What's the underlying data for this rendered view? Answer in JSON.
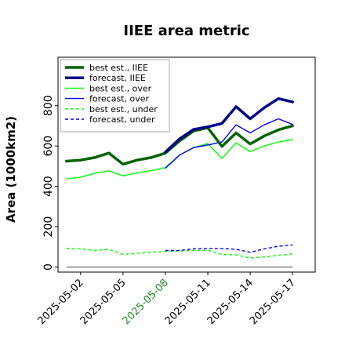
{
  "chart_data": {
    "type": "line",
    "title": "IIEE area metric",
    "xlabel": "",
    "ylabel": "Area (1000km2)",
    "x": [
      "2025-05-01",
      "2025-05-02",
      "2025-05-03",
      "2025-05-04",
      "2025-05-05",
      "2025-05-06",
      "2025-05-07",
      "2025-05-08",
      "2025-05-09",
      "2025-05-10",
      "2025-05-11",
      "2025-05-12",
      "2025-05-13",
      "2025-05-14",
      "2025-05-15",
      "2025-05-16",
      "2025-05-17",
      "2025-05-18"
    ],
    "x_tick_labels": [
      "2025-05-02",
      "2025-05-05",
      "2025-05-08",
      "2025-05-11",
      "2025-05-14",
      "2025-05-17"
    ],
    "highlighted_tick": "2025-05-08",
    "highlight_color": "#228b22",
    "xlim": [
      "2024-04-30",
      "2025-05-18"
    ],
    "ylim": [
      -25,
      1040
    ],
    "y_ticks": [
      0,
      200,
      400,
      600,
      800
    ],
    "grid": false,
    "legend_position": "top-left",
    "baseline": {
      "name": "",
      "value": 0,
      "color": "#808080"
    },
    "series": [
      {
        "name": "best est., IIEE",
        "color": "#006400",
        "style": "solid",
        "width": 3.5,
        "x": [
          "2025-05-01",
          "2025-05-02",
          "2025-05-03",
          "2025-05-04",
          "2025-05-05",
          "2025-05-06",
          "2025-05-07",
          "2025-05-08",
          "2025-05-09",
          "2025-05-10",
          "2025-05-11",
          "2025-05-12",
          "2025-05-13",
          "2025-05-14",
          "2025-05-15",
          "2025-05-16",
          "2025-05-17"
        ],
        "values": [
          525,
          530,
          543,
          565,
          510,
          530,
          543,
          565,
          625,
          675,
          690,
          598,
          665,
          610,
          650,
          680,
          700
        ]
      },
      {
        "name": "forecast, IIEE",
        "color": "#00008b",
        "style": "solid",
        "width": 3.5,
        "x": [
          "2025-05-08",
          "2025-05-09",
          "2025-05-10",
          "2025-05-11",
          "2025-05-12",
          "2025-05-13",
          "2025-05-14",
          "2025-05-15",
          "2025-05-16",
          "2025-05-17"
        ],
        "values": [
          570,
          635,
          682,
          695,
          712,
          795,
          735,
          790,
          835,
          818
        ]
      },
      {
        "name": "best est., over",
        "color": "#00ff00",
        "style": "solid",
        "width": 1.4,
        "x": [
          "2025-05-01",
          "2025-05-02",
          "2025-05-03",
          "2025-05-04",
          "2025-05-05",
          "2025-05-06",
          "2025-05-07",
          "2025-05-08",
          "2025-05-09",
          "2025-05-10",
          "2025-05-11",
          "2025-05-12",
          "2025-05-13",
          "2025-05-14",
          "2025-05-15",
          "2025-05-16",
          "2025-05-17"
        ],
        "values": [
          437,
          445,
          465,
          477,
          452,
          467,
          478,
          493,
          555,
          592,
          612,
          538,
          615,
          572,
          600,
          620,
          632
        ]
      },
      {
        "name": "forecast, over",
        "color": "#0000ff",
        "style": "solid",
        "width": 1.4,
        "x": [
          "2025-05-08",
          "2025-05-09",
          "2025-05-10",
          "2025-05-11",
          "2025-05-12",
          "2025-05-13",
          "2025-05-14",
          "2025-05-15",
          "2025-05-16",
          "2025-05-17"
        ],
        "values": [
          490,
          555,
          592,
          605,
          620,
          705,
          665,
          705,
          735,
          707
        ]
      },
      {
        "name": "best est., under",
        "color": "#00ff00",
        "style": "dashed",
        "width": 1.4,
        "x": [
          "2025-05-01",
          "2025-05-02",
          "2025-05-03",
          "2025-05-04",
          "2025-05-05",
          "2025-05-06",
          "2025-05-07",
          "2025-05-08",
          "2025-05-09",
          "2025-05-10",
          "2025-05-11",
          "2025-05-12",
          "2025-05-13",
          "2025-05-14",
          "2025-05-15",
          "2025-05-16",
          "2025-05-17"
        ],
        "values": [
          92,
          90,
          82,
          88,
          62,
          68,
          73,
          78,
          80,
          82,
          83,
          62,
          60,
          45,
          50,
          58,
          65
        ]
      },
      {
        "name": "forecast, under",
        "color": "#0000ff",
        "style": "dashed",
        "width": 1.4,
        "x": [
          "2025-05-08",
          "2025-05-09",
          "2025-05-10",
          "2025-05-11",
          "2025-05-12",
          "2025-05-13",
          "2025-05-14",
          "2025-05-15",
          "2025-05-16",
          "2025-05-17"
        ],
        "values": [
          82,
          82,
          90,
          92,
          92,
          88,
          73,
          90,
          103,
          110
        ]
      }
    ]
  }
}
